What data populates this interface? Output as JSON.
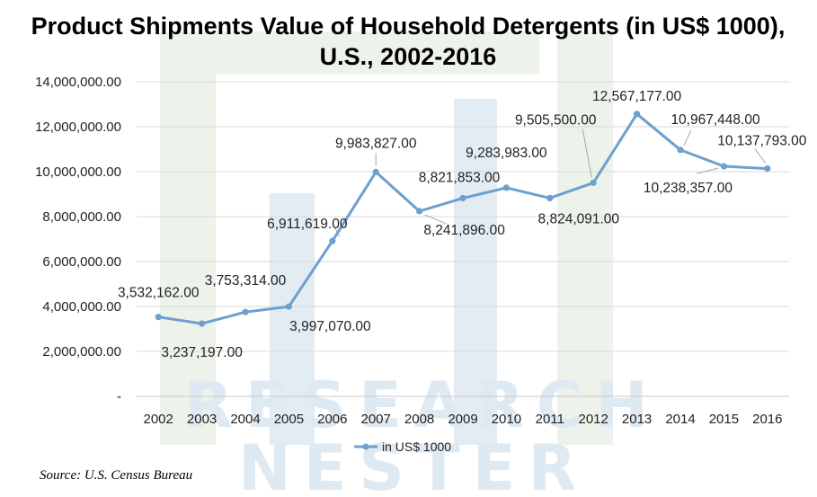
{
  "title": {
    "line1": "Product Shipments Value of Household Detergents (in US$ 1000),",
    "line2": "U.S., 2002-2016"
  },
  "chart_data": {
    "type": "line",
    "title": "Product Shipments Value of Household Detergents (in US$ 1000), U.S., 2002-2016",
    "xlabel": "",
    "ylabel": "",
    "categories": [
      "2002",
      "2003",
      "2004",
      "2005",
      "2006",
      "2007",
      "2008",
      "2009",
      "2010",
      "2011",
      "2012",
      "2013",
      "2014",
      "2015",
      "2016"
    ],
    "series": [
      {
        "name": "in US$ 1000",
        "color": "#6d9fcf",
        "values": [
          3532162,
          3237197,
          3753314,
          3997070,
          6911619,
          9983827,
          8241896,
          8821853,
          9283983,
          8824091,
          9505500,
          12567177,
          10967448,
          10238357,
          10137793
        ],
        "data_labels": [
          "3,532,162.00",
          "3,237,197.00",
          "3,753,314.00",
          "3,997,070.00",
          "6,911,619.00",
          "9,983,827.00",
          "8,241,896.00",
          "8,821,853.00",
          "9,283,983.00",
          "8,824,091.00",
          "9,505,500.00",
          "12,567,177.00",
          "10,967,448.00",
          "10,238,357.00",
          "10,137,793.00"
        ]
      }
    ],
    "ylim": [
      0,
      14000000
    ],
    "yticks": [
      0,
      2000000,
      4000000,
      6000000,
      8000000,
      10000000,
      12000000,
      14000000
    ],
    "ytick_labels": [
      "-",
      "2,000,000.00",
      "4,000,000.00",
      "6,000,000.00",
      "8,000,000.00",
      "10,000,000.00",
      "12,000,000.00",
      "14,000,000.00"
    ],
    "grid": true,
    "legend_position": "bottom"
  },
  "watermark": {
    "line1": "RESEARCH",
    "line2": "NESTER",
    "color": "#dfe9f2"
  },
  "source": "Source: U.S. Census Bureau"
}
